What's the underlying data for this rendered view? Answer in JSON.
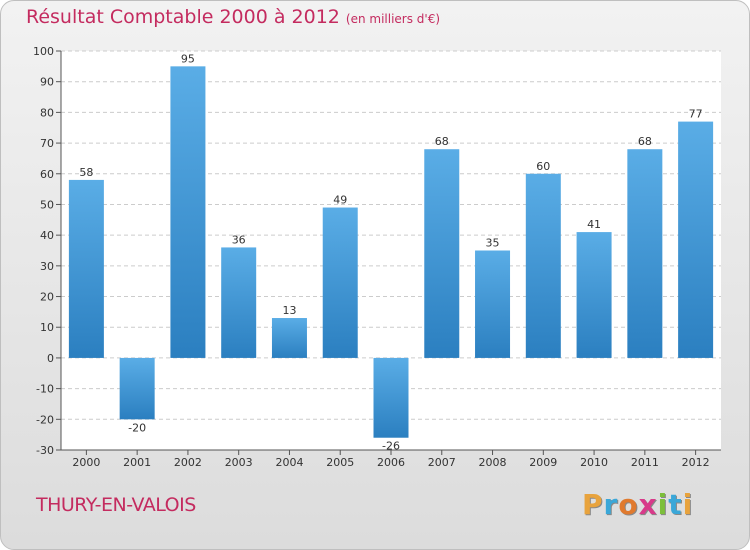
{
  "title": "Résultat Comptable 2000 à 2012",
  "subtitle": "(en milliers d'€)",
  "commune": "THURY-EN-VALOIS",
  "logo": {
    "letters": [
      "P",
      "r",
      "o",
      "x",
      "i",
      "t",
      "i"
    ],
    "colors": [
      "#e8a33d",
      "#3aa7d8",
      "#e07a2e",
      "#d83a8a",
      "#7cbf3a",
      "#3aa7d8",
      "#e8a33d"
    ]
  },
  "colors": {
    "bar_top": "#5aade6",
    "bar_bottom": "#2b7fc0",
    "title": "#c42b5f"
  },
  "chart_data": {
    "type": "bar",
    "title": "Résultat Comptable 2000 à 2012",
    "ylabel": "en milliers d'€",
    "categories": [
      "2000",
      "2001",
      "2002",
      "2003",
      "2004",
      "2005",
      "2006",
      "2007",
      "2008",
      "2009",
      "2010",
      "2011",
      "2012"
    ],
    "values": [
      58,
      -20,
      95,
      36,
      13,
      49,
      -26,
      68,
      35,
      60,
      41,
      68,
      77
    ],
    "ylim": [
      -30,
      100
    ],
    "yticks": [
      -30,
      -20,
      -10,
      0,
      10,
      20,
      30,
      40,
      50,
      60,
      70,
      80,
      90,
      100
    ],
    "grid": true
  }
}
